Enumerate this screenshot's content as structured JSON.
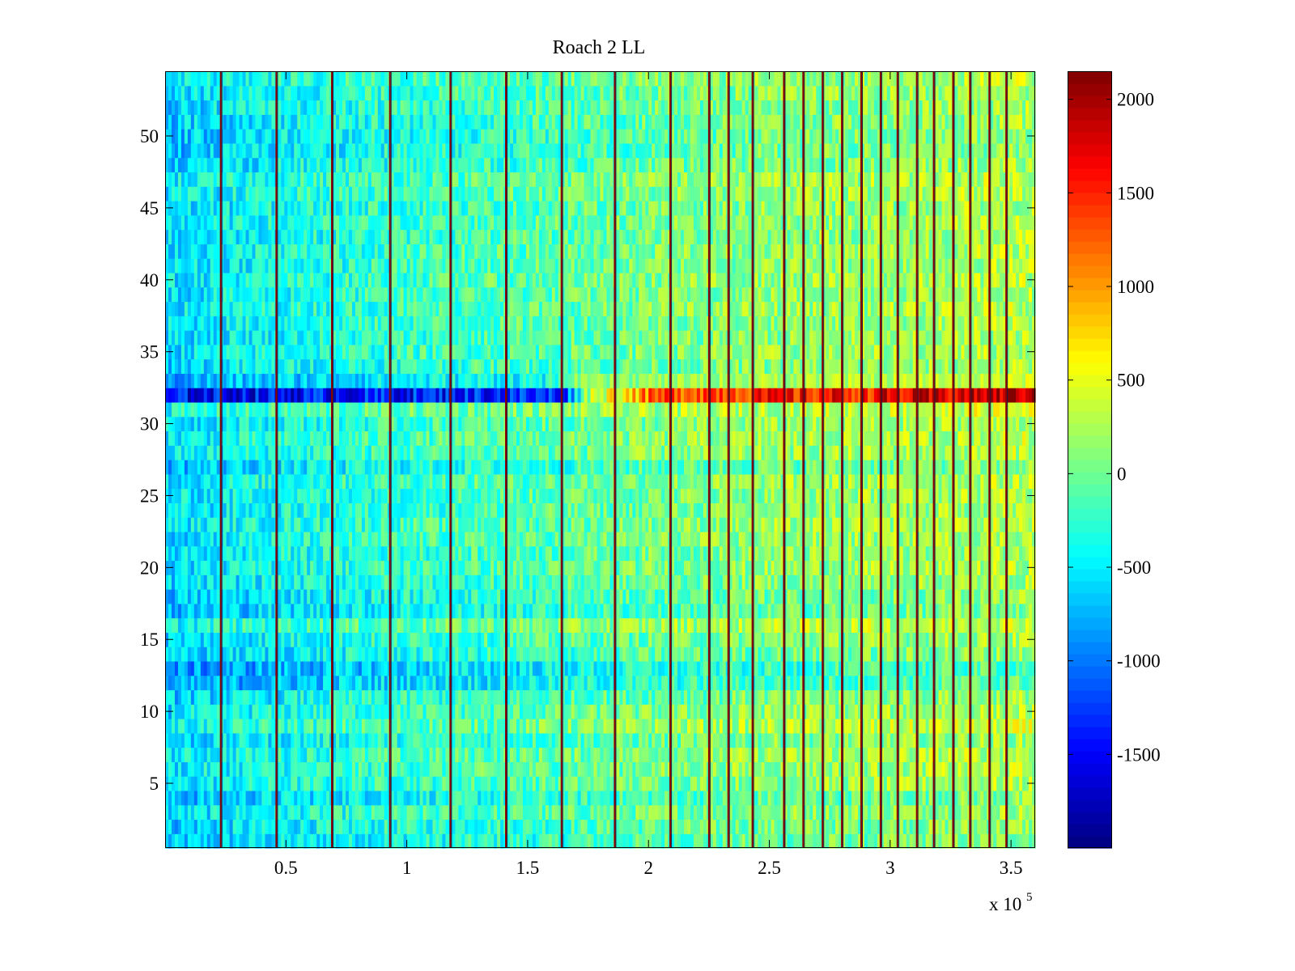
{
  "chart_data": {
    "type": "heatmap",
    "title": "Roach 2 LL",
    "xlabel": "",
    "ylabel": "",
    "x_multiplier_label": "x 10",
    "x_multiplier_exponent": "5",
    "xlim": [
      0,
      3.6
    ],
    "ylim": [
      0.5,
      54.5
    ],
    "x_ticks": [
      0.5,
      1,
      1.5,
      2,
      2.5,
      3,
      3.5
    ],
    "x_tick_labels": [
      "0.5",
      "1",
      "1.5",
      "2",
      "2.5",
      "3",
      "3.5"
    ],
    "y_ticks": [
      5,
      10,
      15,
      20,
      25,
      30,
      35,
      40,
      45,
      50
    ],
    "y_tick_labels": [
      "5",
      "10",
      "15",
      "20",
      "25",
      "30",
      "35",
      "40",
      "45",
      "50"
    ],
    "colorbar": {
      "colormap": "jet",
      "range": [
        -2000,
        2150
      ],
      "ticks": [
        -1500,
        -1000,
        -500,
        0,
        500,
        1000,
        1500,
        2000
      ],
      "tick_labels": [
        "-1500",
        "-1000",
        "-500",
        "0",
        "500",
        "1000",
        "1500",
        "2000"
      ]
    },
    "grid": false,
    "rows": 54,
    "row_baseline": [
      {
        "row": 1,
        "value": -500
      },
      {
        "row": 2,
        "value": -400
      },
      {
        "row": 3,
        "value": -250
      },
      {
        "row": 4,
        "value": -550
      },
      {
        "row": 5,
        "value": -200
      },
      {
        "row": 6,
        "value": -150
      },
      {
        "row": 7,
        "value": -100
      },
      {
        "row": 8,
        "value": -350
      },
      {
        "row": 9,
        "value": 0
      },
      {
        "row": 10,
        "value": -200
      },
      {
        "row": 11,
        "value": -350
      },
      {
        "row": 12,
        "value": -800
      },
      {
        "row": 13,
        "value": -900
      },
      {
        "row": 14,
        "value": -450
      },
      {
        "row": 15,
        "value": -300
      },
      {
        "row": 16,
        "value": 50
      },
      {
        "row": 17,
        "value": -550
      },
      {
        "row": 18,
        "value": -450
      },
      {
        "row": 19,
        "value": -300
      },
      {
        "row": 20,
        "value": -200
      },
      {
        "row": 21,
        "value": -250
      },
      {
        "row": 22,
        "value": -200
      },
      {
        "row": 23,
        "value": -150
      },
      {
        "row": 24,
        "value": -250
      },
      {
        "row": 25,
        "value": -200
      },
      {
        "row": 26,
        "value": -150
      },
      {
        "row": 27,
        "value": -500
      },
      {
        "row": 28,
        "value": -150
      },
      {
        "row": 29,
        "value": -100
      },
      {
        "row": 30,
        "value": -200
      },
      {
        "row": 31,
        "value": 100
      },
      {
        "row": 32,
        "value": -1300
      },
      {
        "row": 33,
        "value": -700
      },
      {
        "row": 34,
        "value": -300
      },
      {
        "row": 35,
        "value": -200
      },
      {
        "row": 36,
        "value": -250
      },
      {
        "row": 37,
        "value": -200
      },
      {
        "row": 38,
        "value": -150
      },
      {
        "row": 39,
        "value": -200
      },
      {
        "row": 40,
        "value": -150
      },
      {
        "row": 41,
        "value": -200
      },
      {
        "row": 42,
        "value": -150
      },
      {
        "row": 43,
        "value": -250
      },
      {
        "row": 44,
        "value": -200
      },
      {
        "row": 45,
        "value": -250
      },
      {
        "row": 46,
        "value": -150
      },
      {
        "row": 47,
        "value": -100
      },
      {
        "row": 48,
        "value": -350
      },
      {
        "row": 49,
        "value": -450
      },
      {
        "row": 50,
        "value": -450
      },
      {
        "row": 51,
        "value": -350
      },
      {
        "row": 52,
        "value": -300
      },
      {
        "row": 53,
        "value": -250
      },
      {
        "row": 54,
        "value": -150
      }
    ],
    "column_trend": [
      {
        "x": 0,
        "value": -450
      },
      {
        "x": 0.5,
        "value": -250
      },
      {
        "x": 1,
        "value": -100
      },
      {
        "x": 1.5,
        "value": 0
      },
      {
        "x": 2,
        "value": 150
      },
      {
        "x": 2.5,
        "value": 250
      },
      {
        "x": 3,
        "value": 300
      },
      {
        "x": 3.6,
        "value": 400
      }
    ],
    "row32_trend": [
      {
        "x": 0,
        "value": -1500
      },
      {
        "x": 0.9,
        "value": -1400
      },
      {
        "x": 1.65,
        "value": -1300
      },
      {
        "x": 1.75,
        "value": 300
      },
      {
        "x": 2.1,
        "value": 1400
      },
      {
        "x": 2.6,
        "value": 1500
      },
      {
        "x": 3.2,
        "value": 1700
      },
      {
        "x": 3.6,
        "value": 2000
      }
    ],
    "vertical_spike_lines_x": [
      0.23,
      0.46,
      0.69,
      0.93,
      1.18,
      1.41,
      1.64,
      1.86,
      2.09,
      2.25,
      2.33,
      2.43,
      2.56,
      2.64,
      2.72,
      2.8,
      2.88,
      2.96,
      3.03,
      3.11,
      3.18,
      3.26,
      3.33,
      3.41,
      3.48
    ],
    "vertical_spike_value": 2100
  }
}
